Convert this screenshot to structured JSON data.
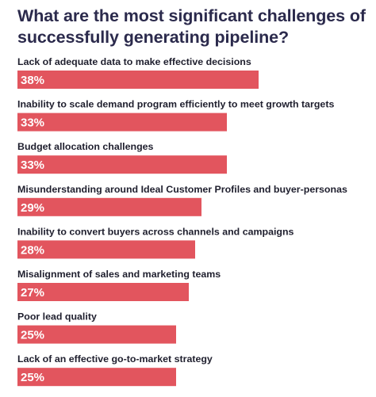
{
  "chart_data": {
    "type": "bar",
    "orientation": "horizontal",
    "title": "What are the most significant challenges of successfully generating pipeline?",
    "categories": [
      "Lack of adequate data to make effective decisions",
      "Inability to scale demand program efficiently to meet growth targets",
      "Budget allocation challenges",
      "Misunderstanding around Ideal Customer Profiles and buyer-personas",
      "Inability to convert buyers across channels and campaigns",
      "Misalignment of sales and marketing teams",
      "Poor lead quality",
      "Lack of an effective go-to-market strategy"
    ],
    "values": [
      38,
      33,
      33,
      29,
      28,
      27,
      25,
      25
    ],
    "data_labels": [
      "38%",
      "33%",
      "33%",
      "29%",
      "28%",
      "27%",
      "25%",
      "25%"
    ],
    "unit": "%",
    "xlim": [
      0,
      38
    ],
    "grid": false,
    "colors": {
      "bar": "#e2555e",
      "title": "#2b2a4c",
      "label": "#1f1f2e",
      "bar_text": "#ffffff"
    }
  }
}
